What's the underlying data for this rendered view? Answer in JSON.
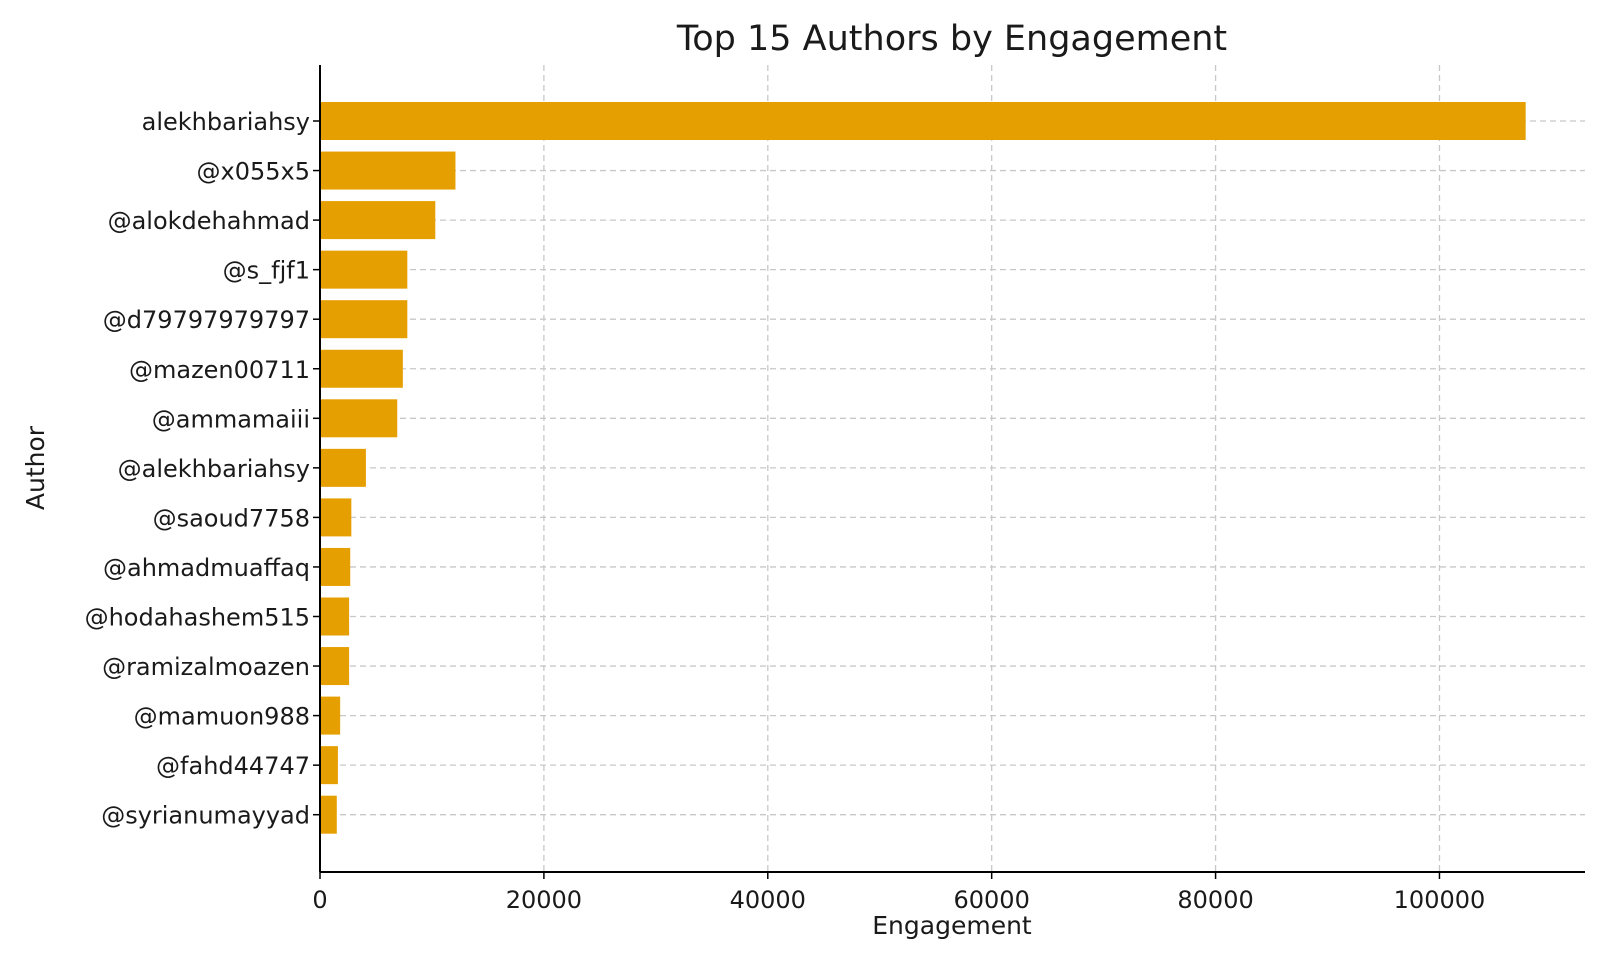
{
  "chart_data": {
    "type": "bar",
    "orientation": "horizontal",
    "title": "Top 15 Authors by Engagement",
    "xlabel": "Engagement",
    "ylabel": "Author",
    "xlim": [
      0,
      113000
    ],
    "xticks": [
      0,
      20000,
      40000,
      60000,
      80000,
      100000
    ],
    "grid": true,
    "bar_color": "#E69F00",
    "categories": [
      "alekhbariahsy",
      "@x055x5",
      "@alokdehahmad",
      "@s_fjf1",
      "@d79797979797",
      "@mazen00711",
      "@ammamaiii",
      "@alekhbariahsy",
      "@saoud7758",
      "@ahmadmuaffaq",
      "@hodahashem515",
      "@ramizalmoazen",
      "@mamuon988",
      "@fahd44747",
      "@syrianumayyad"
    ],
    "values": [
      107700,
      12100,
      10300,
      7800,
      7800,
      7400,
      6900,
      4100,
      2800,
      2700,
      2600,
      2600,
      1800,
      1600,
      1500
    ]
  }
}
